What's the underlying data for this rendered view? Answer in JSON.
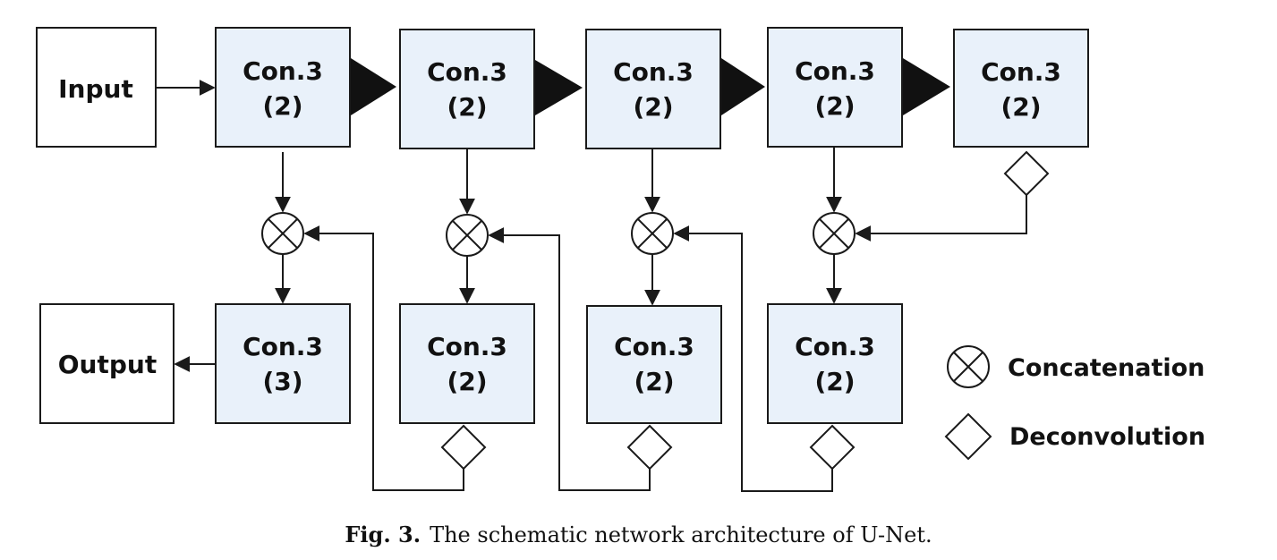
{
  "diagram": {
    "input_label": "Input",
    "output_label": "Output",
    "encoder": [
      {
        "line1": "Con.3",
        "line2": "(2)"
      },
      {
        "line1": "Con.3",
        "line2": "(2)"
      },
      {
        "line1": "Con.3",
        "line2": "(2)"
      },
      {
        "line1": "Con.3",
        "line2": "(2)"
      },
      {
        "line1": "Con.3",
        "line2": "(2)"
      }
    ],
    "decoder": [
      {
        "line1": "Con.3",
        "line2": "(3)"
      },
      {
        "line1": "Con.3",
        "line2": "(2)"
      },
      {
        "line1": "Con.3",
        "line2": "(2)"
      },
      {
        "line1": "Con.3",
        "line2": "(2)"
      }
    ],
    "colors": {
      "block_fill": "#e9f1fa",
      "border": "#1a1a1a",
      "plain_fill": "#ffffff"
    }
  },
  "legend": {
    "concatenation": "Concatenation",
    "deconvolution": "Deconvolution"
  },
  "caption": {
    "figure_label": "Fig. 3.",
    "text": "The schematic network architecture of U-Net."
  }
}
